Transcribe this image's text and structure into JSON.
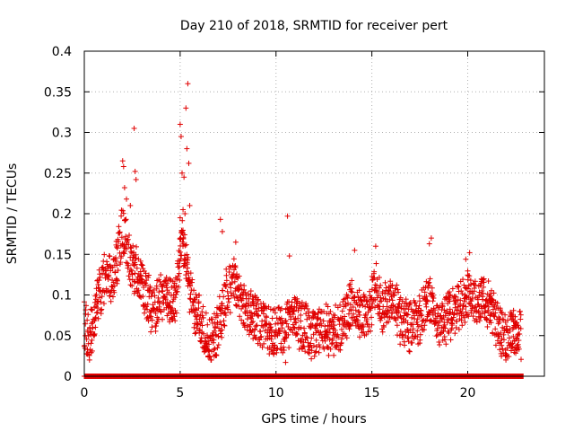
{
  "chart_data": {
    "type": "scatter",
    "title": "Day 210 of 2018, SRMTID for receiver pert",
    "xlabel": "GPS time / hours",
    "ylabel": "SRMTID / TECUs",
    "xlim": [
      0,
      24
    ],
    "ylim": [
      0,
      0.4
    ],
    "x_ticks": [
      0,
      5,
      10,
      15,
      20
    ],
    "x_tick_labels": [
      "0",
      "5",
      "10",
      "15",
      "20"
    ],
    "y_ticks": [
      0,
      0.05,
      0.1,
      0.15,
      0.2,
      0.25,
      0.3,
      0.35,
      0.4
    ],
    "y_tick_labels": [
      "0",
      "0.05",
      "0.1",
      "0.15",
      "0.2",
      "0.25",
      "0.3",
      "0.35",
      "0.4"
    ],
    "grid": true,
    "marker": "plus",
    "color": "#e00000",
    "series": [
      {
        "name": "SRMTID",
        "profile": [
          {
            "hour": 0.0,
            "value": 0.06
          },
          {
            "hour": 0.3,
            "value": 0.05
          },
          {
            "hour": 0.5,
            "value": 0.07
          },
          {
            "hour": 0.8,
            "value": 0.1
          },
          {
            "hour": 1.1,
            "value": 0.13
          },
          {
            "hour": 1.4,
            "value": 0.12
          },
          {
            "hour": 1.7,
            "value": 0.14
          },
          {
            "hour": 2.0,
            "value": 0.18
          },
          {
            "hour": 2.3,
            "value": 0.15
          },
          {
            "hour": 2.6,
            "value": 0.13
          },
          {
            "hour": 2.9,
            "value": 0.12
          },
          {
            "hour": 3.2,
            "value": 0.1
          },
          {
            "hour": 3.6,
            "value": 0.08
          },
          {
            "hour": 4.0,
            "value": 0.1
          },
          {
            "hour": 4.4,
            "value": 0.09
          },
          {
            "hour": 4.8,
            "value": 0.1
          },
          {
            "hour": 5.1,
            "value": 0.18
          },
          {
            "hour": 5.4,
            "value": 0.12
          },
          {
            "hour": 5.8,
            "value": 0.08
          },
          {
            "hour": 6.2,
            "value": 0.06
          },
          {
            "hour": 6.6,
            "value": 0.04
          },
          {
            "hour": 7.0,
            "value": 0.06
          },
          {
            "hour": 7.4,
            "value": 0.1
          },
          {
            "hour": 7.8,
            "value": 0.12
          },
          {
            "hour": 8.2,
            "value": 0.09
          },
          {
            "hour": 8.6,
            "value": 0.08
          },
          {
            "hour": 9.0,
            "value": 0.07
          },
          {
            "hour": 9.5,
            "value": 0.06
          },
          {
            "hour": 10.0,
            "value": 0.055
          },
          {
            "hour": 10.5,
            "value": 0.06
          },
          {
            "hour": 11.0,
            "value": 0.07
          },
          {
            "hour": 11.5,
            "value": 0.06
          },
          {
            "hour": 12.0,
            "value": 0.05
          },
          {
            "hour": 12.5,
            "value": 0.06
          },
          {
            "hour": 13.0,
            "value": 0.05
          },
          {
            "hour": 13.5,
            "value": 0.07
          },
          {
            "hour": 14.0,
            "value": 0.09
          },
          {
            "hour": 14.4,
            "value": 0.08
          },
          {
            "hour": 14.8,
            "value": 0.07
          },
          {
            "hour": 15.2,
            "value": 0.11
          },
          {
            "hour": 15.6,
            "value": 0.08
          },
          {
            "hour": 16.0,
            "value": 0.09
          },
          {
            "hour": 16.5,
            "value": 0.07
          },
          {
            "hour": 17.0,
            "value": 0.06
          },
          {
            "hour": 17.5,
            "value": 0.07
          },
          {
            "hour": 18.0,
            "value": 0.1
          },
          {
            "hour": 18.4,
            "value": 0.06
          },
          {
            "hour": 18.8,
            "value": 0.07
          },
          {
            "hour": 19.2,
            "value": 0.08
          },
          {
            "hour": 19.6,
            "value": 0.09
          },
          {
            "hour": 20.0,
            "value": 0.1
          },
          {
            "hour": 20.4,
            "value": 0.09
          },
          {
            "hour": 20.8,
            "value": 0.1
          },
          {
            "hour": 21.2,
            "value": 0.08
          },
          {
            "hour": 21.6,
            "value": 0.06
          },
          {
            "hour": 22.0,
            "value": 0.05
          },
          {
            "hour": 22.4,
            "value": 0.055
          },
          {
            "hour": 22.8,
            "value": 0.05
          }
        ],
        "spread": 0.028,
        "highlights": [
          {
            "hour": 2.0,
            "value": 0.265
          },
          {
            "hour": 2.05,
            "value": 0.258
          },
          {
            "hour": 2.1,
            "value": 0.232
          },
          {
            "hour": 2.6,
            "value": 0.305
          },
          {
            "hour": 2.65,
            "value": 0.252
          },
          {
            "hour": 2.7,
            "value": 0.242
          },
          {
            "hour": 2.2,
            "value": 0.218
          },
          {
            "hour": 2.4,
            "value": 0.21
          },
          {
            "hour": 5.0,
            "value": 0.31
          },
          {
            "hour": 5.05,
            "value": 0.295
          },
          {
            "hour": 5.1,
            "value": 0.25
          },
          {
            "hour": 5.2,
            "value": 0.245
          },
          {
            "hour": 5.3,
            "value": 0.33
          },
          {
            "hour": 5.4,
            "value": 0.36
          },
          {
            "hour": 5.35,
            "value": 0.28
          },
          {
            "hour": 5.45,
            "value": 0.262
          },
          {
            "hour": 5.15,
            "value": 0.205
          },
          {
            "hour": 5.25,
            "value": 0.2
          },
          {
            "hour": 5.5,
            "value": 0.21
          },
          {
            "hour": 5.0,
            "value": 0.195
          },
          {
            "hour": 7.1,
            "value": 0.193
          },
          {
            "hour": 7.2,
            "value": 0.178
          },
          {
            "hour": 7.9,
            "value": 0.165
          },
          {
            "hour": 10.6,
            "value": 0.197
          },
          {
            "hour": 10.7,
            "value": 0.148
          },
          {
            "hour": 10.5,
            "value": 0.017
          },
          {
            "hour": 14.1,
            "value": 0.155
          },
          {
            "hour": 15.2,
            "value": 0.16
          },
          {
            "hour": 18.1,
            "value": 0.17
          },
          {
            "hour": 18.0,
            "value": 0.163
          },
          {
            "hour": 20.1,
            "value": 0.152
          },
          {
            "hour": 19.9,
            "value": 0.144
          }
        ],
        "zero_line": {
          "value": 0,
          "from_hour": 0,
          "to_hour": 22.9
        }
      }
    ]
  }
}
